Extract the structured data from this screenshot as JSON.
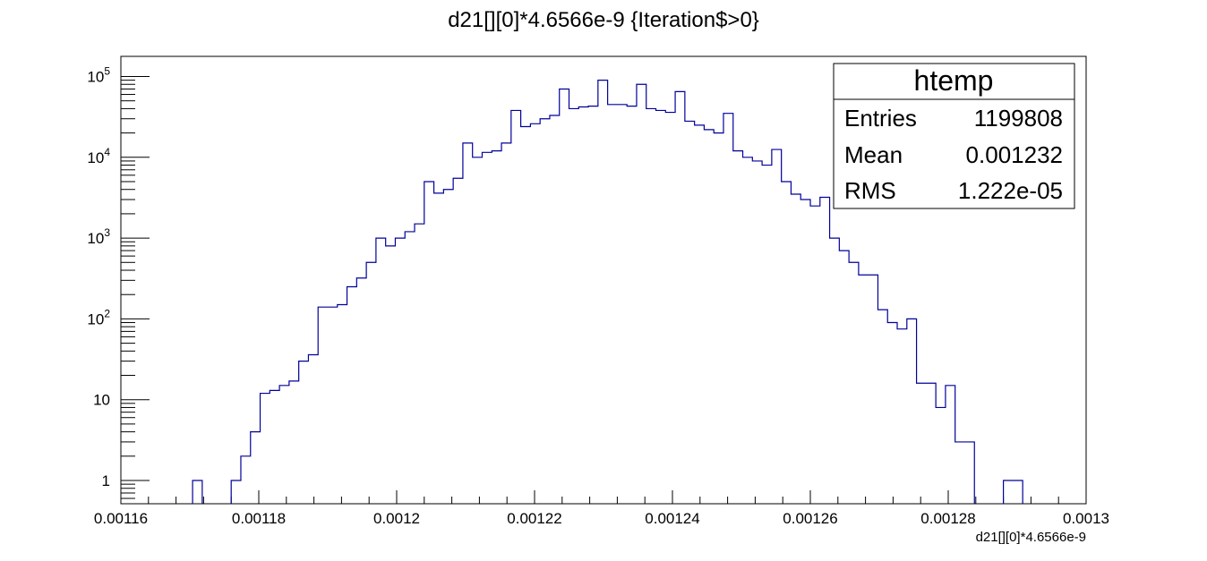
{
  "chart_data": {
    "type": "histogram",
    "title": "d21[][0]*4.6566e-9 {Iteration$>0}",
    "xlabel": "d21[][0]*4.6566e-9",
    "ylabel": "",
    "xlim": [
      0.00116,
      0.0013
    ],
    "ylim": [
      0.55,
      130000
    ],
    "yscale": "log",
    "x_tick_labels": [
      "0.00116",
      "0.00118",
      "0.0012",
      "0.00122",
      "0.00124",
      "0.00126",
      "0.00128",
      "0.0013"
    ],
    "y_tick_labels": [
      {
        "base": "1",
        "exp": ""
      },
      {
        "base": "10",
        "exp": ""
      },
      {
        "base": "10",
        "exp": "2"
      },
      {
        "base": "10",
        "exp": "3"
      },
      {
        "base": "10",
        "exp": "4"
      },
      {
        "base": "10",
        "exp": "5"
      }
    ],
    "bin_start": 0.0011648,
    "bin_width": 1.4e-06,
    "values": [
      0,
      0,
      0,
      0,
      1,
      0,
      0,
      0,
      1,
      2,
      4,
      12,
      13,
      15,
      17,
      30,
      36,
      140,
      140,
      150,
      250,
      320,
      500,
      1000,
      800,
      1000,
      1200,
      1500,
      5000,
      3600,
      4000,
      5500,
      15000,
      10000,
      11500,
      12000,
      15000,
      38000,
      24000,
      26000,
      30000,
      33000,
      70000,
      40000,
      42000,
      43000,
      90000,
      45000,
      45000,
      43000,
      80000,
      40000,
      38000,
      36000,
      65000,
      28000,
      25000,
      22000,
      20000,
      35000,
      12000,
      10000,
      9000,
      8000,
      12500,
      5000,
      3500,
      3000,
      2500,
      3200,
      1000,
      700,
      500,
      350,
      350,
      130,
      90,
      75,
      100,
      16,
      16,
      8,
      15,
      3,
      3,
      0,
      0,
      0,
      1,
      1,
      0,
      0
    ]
  },
  "stats_box": {
    "title": "htemp",
    "rows": [
      {
        "label": "Entries",
        "value": "1199808"
      },
      {
        "label": "Mean",
        "value": "0.001232"
      },
      {
        "label": "RMS",
        "value": "1.222e-05"
      }
    ]
  },
  "colors": {
    "histogram_line": "#000099",
    "frame": "#000000",
    "background": "#ffffff"
  }
}
